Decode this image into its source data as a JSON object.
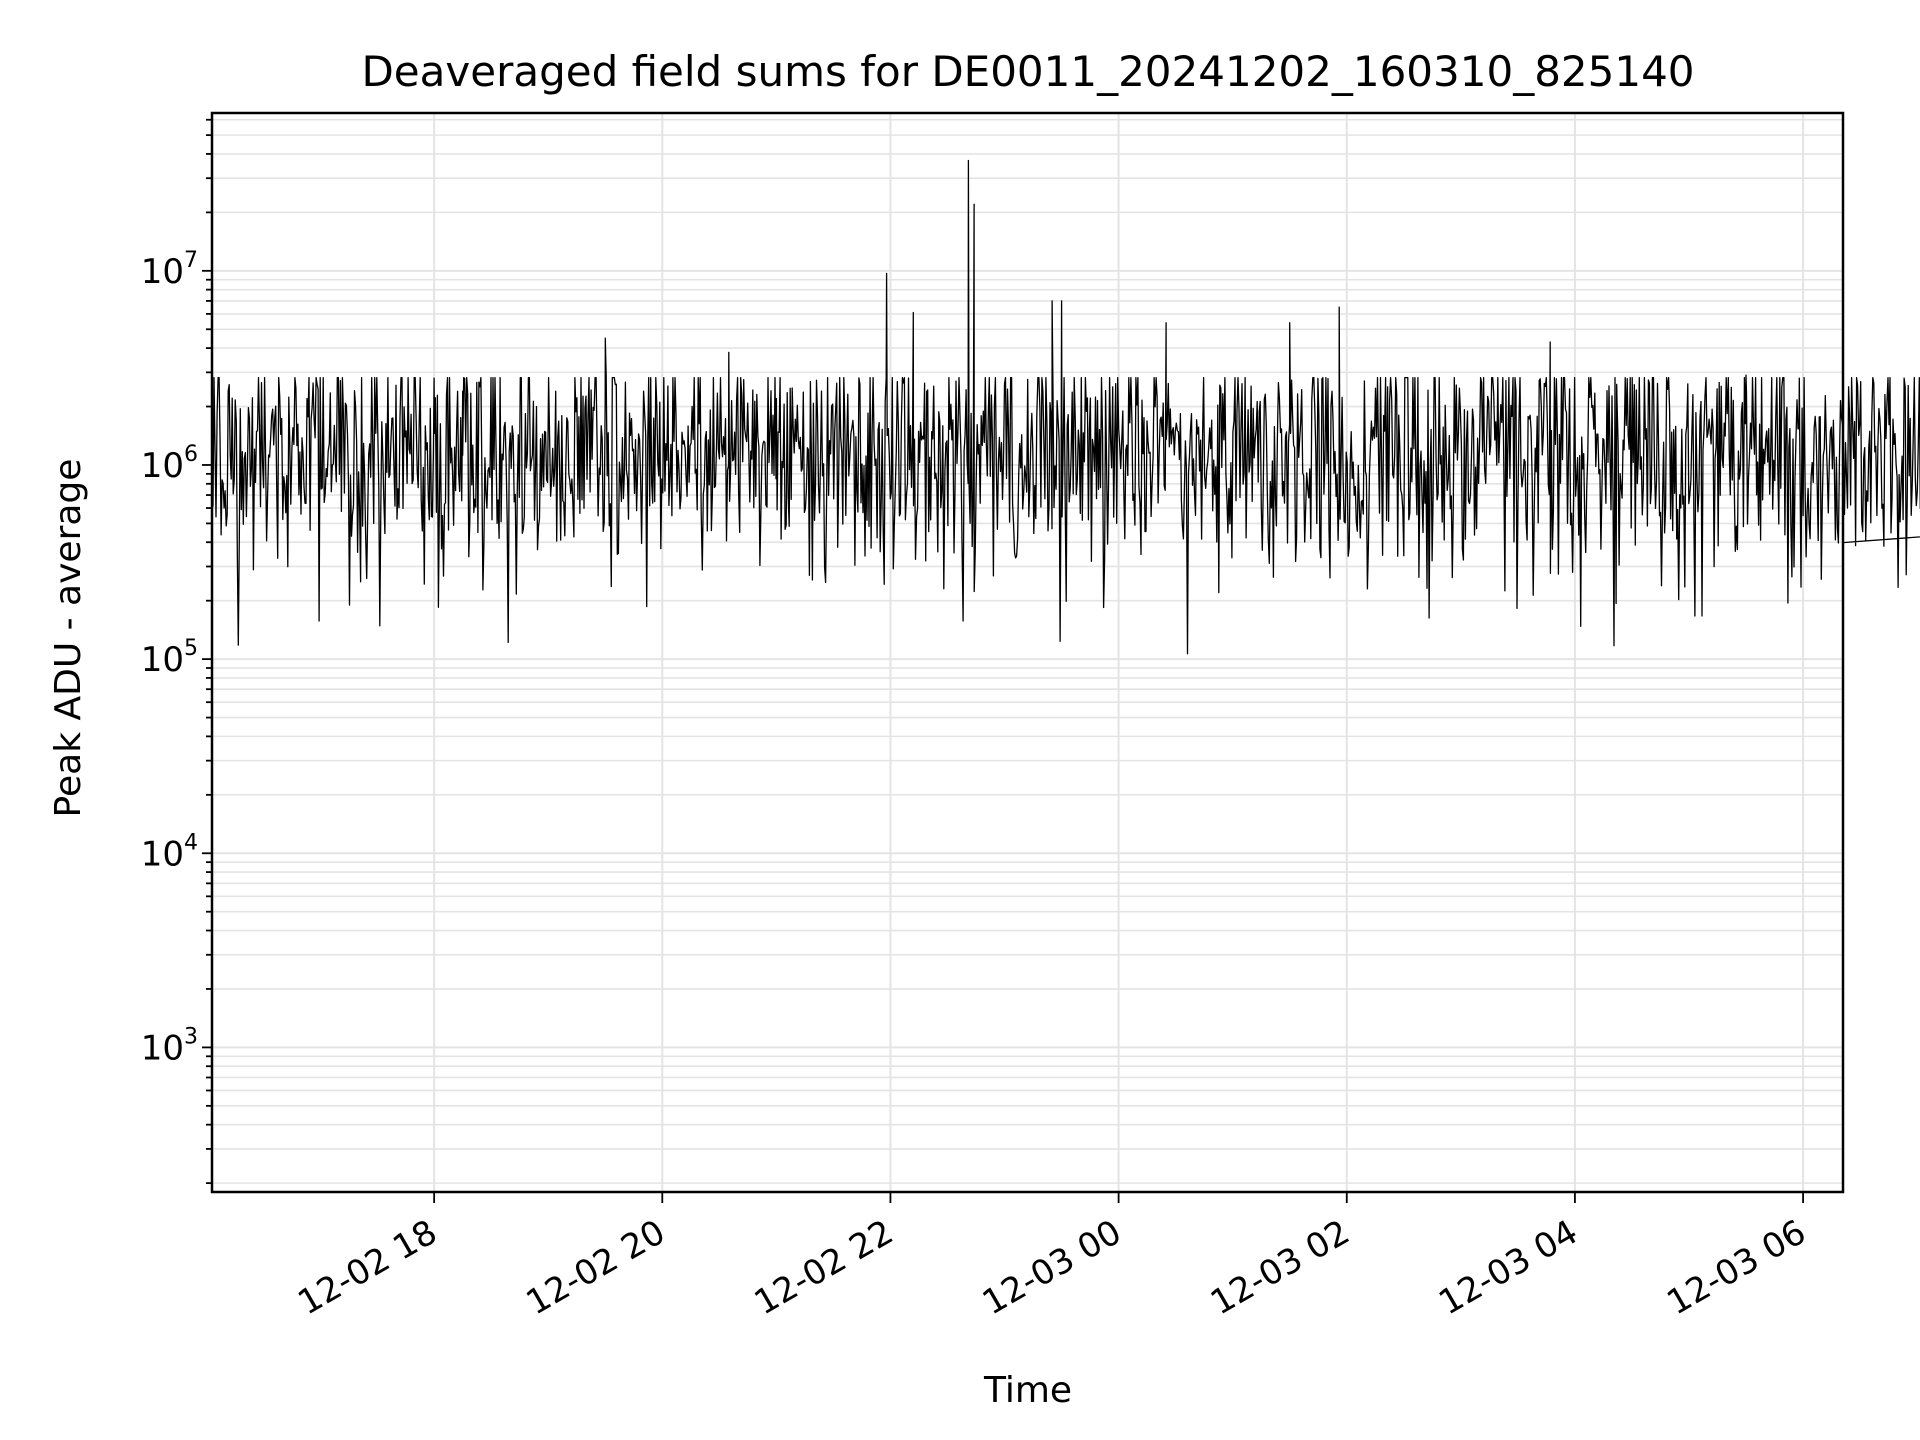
{
  "chart_data": {
    "type": "line",
    "title": "Deaveraged field sums for DE0011_20241202_160310_825140",
    "xlabel": "Time",
    "ylabel": "Peak ADU - average",
    "x_start": "2024-12-02 16:03:10",
    "x_end": "2024-12-03 06:21:00",
    "xlim": [
      "2024-12-02 16:03:10",
      "2024-12-03 06:21:00"
    ],
    "ylim": [
      180,
      65000000
    ],
    "yscale": "log",
    "grid": true,
    "x_ticks": [
      {
        "label": "12-02 18",
        "value": "2024-12-02 18:00"
      },
      {
        "label": "12-02 20",
        "value": "2024-12-02 20:00"
      },
      {
        "label": "12-02 22",
        "value": "2024-12-02 22:00"
      },
      {
        "label": "12-03 00",
        "value": "2024-12-03 00:00"
      },
      {
        "label": "12-03 02",
        "value": "2024-12-03 02:00"
      },
      {
        "label": "12-03 04",
        "value": "2024-12-03 04:00"
      },
      {
        "label": "12-03 06",
        "value": "2024-12-03 06:00"
      }
    ],
    "y_ticks": [
      {
        "base": "10",
        "exp": "3",
        "value": 1000
      },
      {
        "base": "10",
        "exp": "4",
        "value": 10000
      },
      {
        "base": "10",
        "exp": "5",
        "value": 100000
      },
      {
        "base": "10",
        "exp": "6",
        "value": 1000000
      },
      {
        "base": "10",
        "exp": "7",
        "value": 10000000
      }
    ],
    "series": [
      {
        "color": "#000000",
        "spikes": [
          {
            "t": "2024-12-02 17:00",
            "y": 2100000
          },
          {
            "t": "2024-12-02 18:00",
            "y": 2800000
          },
          {
            "t": "2024-12-02 18:15",
            "y": 2400000
          },
          {
            "t": "2024-12-02 19:30",
            "y": 4500000
          },
          {
            "t": "2024-12-02 20:35",
            "y": 3800000
          },
          {
            "t": "2024-12-02 21:00",
            "y": 2200000
          },
          {
            "t": "2024-12-02 21:58",
            "y": 9700000
          },
          {
            "t": "2024-12-02 22:12",
            "y": 6100000
          },
          {
            "t": "2024-12-02 22:41",
            "y": 37000000
          },
          {
            "t": "2024-12-02 22:44",
            "y": 22000000
          },
          {
            "t": "2024-12-02 23:25",
            "y": 7000000
          },
          {
            "t": "2024-12-02 23:30",
            "y": 7000000
          },
          {
            "t": "2024-12-03 00:25",
            "y": 5400000
          },
          {
            "t": "2024-12-03 01:30",
            "y": 5400000
          },
          {
            "t": "2024-12-03 01:56",
            "y": 6500000
          },
          {
            "t": "2024-12-03 03:47",
            "y": 4300000
          },
          {
            "t": "2024-12-03 04:22",
            "y": 2600000
          },
          {
            "t": "2024-12-03 05:30",
            "y": 2900000
          },
          {
            "t": "2024-12-03 05:58",
            "y": 2800000
          }
        ]
      }
    ]
  }
}
